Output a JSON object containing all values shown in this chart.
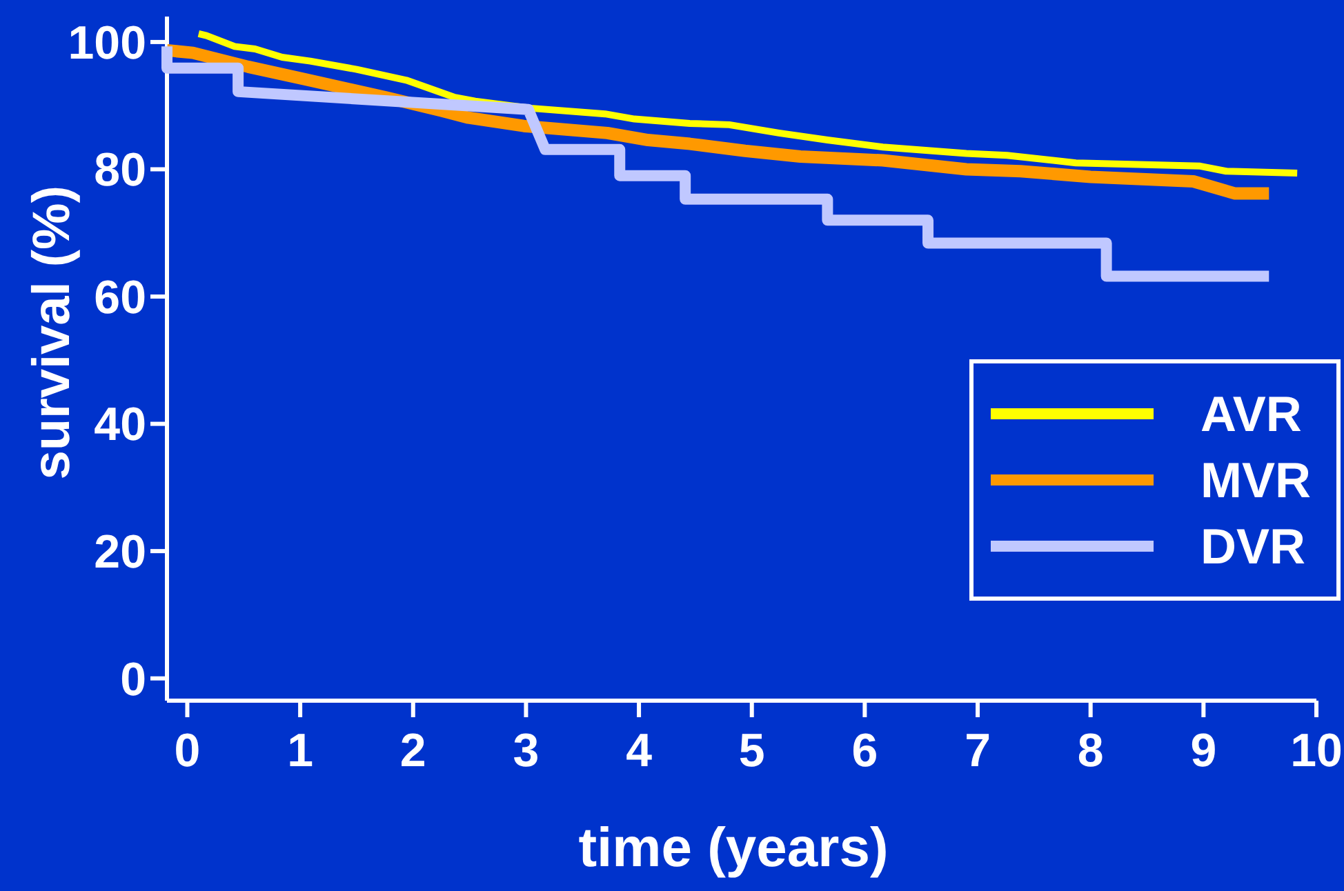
{
  "chart_data": {
    "type": "line",
    "xlabel": "time (years)",
    "ylabel": "survival (%)",
    "xlim": [
      -0.18,
      10
    ],
    "ylim": [
      -3.5,
      104
    ],
    "xticks": [
      0,
      1,
      2,
      3,
      4,
      5,
      6,
      7,
      8,
      9,
      10
    ],
    "yticks": [
      0,
      20,
      40,
      60,
      80,
      100
    ],
    "grid": false,
    "legend": "right",
    "marker": "none",
    "line_style": "solid",
    "series": [
      {
        "name": "AVR",
        "color": "#ffff00",
        "x": [
          0.1,
          0.17,
          0.42,
          0.6,
          0.84,
          1.09,
          1.5,
          1.94,
          2.37,
          2.55,
          3.04,
          3.7,
          3.96,
          4.45,
          4.8,
          5.24,
          5.67,
          6.16,
          6.9,
          7.26,
          7.87,
          8.97,
          9.2,
          9.83
        ],
        "values": [
          101.3,
          101,
          99.3,
          98.9,
          97.6,
          97,
          95.7,
          94,
          91.3,
          90.7,
          89.6,
          88.7,
          87.9,
          87.2,
          87,
          85.7,
          84.6,
          83.5,
          82.5,
          82.2,
          81,
          80.5,
          79.7,
          79.4
        ]
      },
      {
        "name": "MVR",
        "color": "#ff9900",
        "x": [
          -0.18,
          0.05,
          0.54,
          1.03,
          1.76,
          2.25,
          2.49,
          2.98,
          3.72,
          4.08,
          4.45,
          4.94,
          5.43,
          6.16,
          6.9,
          7.38,
          8,
          8.91,
          9.28,
          9.58
        ],
        "values": [
          98.7,
          98.3,
          96.1,
          94.2,
          91.3,
          89.2,
          88.1,
          86.8,
          85.7,
          84.6,
          84,
          82.9,
          82,
          81.4,
          80,
          79.7,
          78.8,
          78.1,
          76.2,
          76.2
        ]
      },
      {
        "name": "DVR",
        "color": "#c0c8ff",
        "x": [
          -0.18,
          -0.18,
          0.45,
          0.45,
          3.02,
          3.17,
          3.83,
          3.83,
          4.41,
          4.41,
          5.67,
          5.67,
          6.56,
          6.56,
          8.14,
          8.14,
          9.58
        ],
        "values": [
          99.3,
          95.9,
          95.9,
          92.2,
          89.4,
          83.1,
          83.1,
          79,
          79,
          75.3,
          75.3,
          72,
          72,
          68.4,
          68.4,
          63.2,
          63.2
        ]
      }
    ]
  }
}
